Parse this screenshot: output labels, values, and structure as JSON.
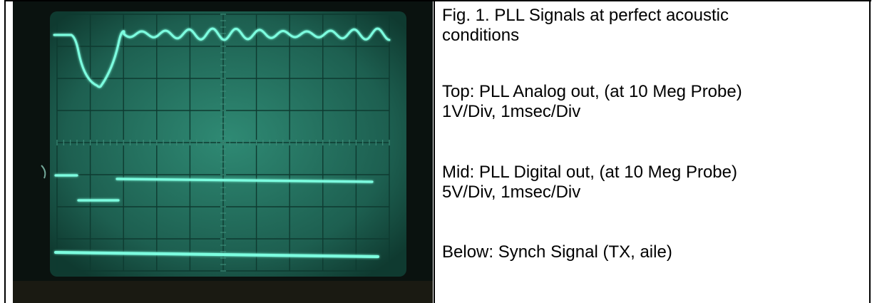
{
  "figure": {
    "caption_line1": "Fig. 1. PLL Signals at perfect acoustic",
    "caption_line2": "conditions"
  },
  "top_trace": {
    "line1": "Top: PLL Analog out, (at 10 Meg Probe)",
    "line2": "1V/Div, 1msec/Div"
  },
  "mid_trace": {
    "line1": "Mid: PLL Digital out, (at 10 Meg Probe)",
    "line2": "5V/Div, 1msec/Div"
  },
  "bottom_trace": {
    "line1": "Below: Synch Signal (TX, aile)"
  },
  "colors": {
    "trace": "#7dffe0",
    "screen": "#1f6a5a",
    "bezel": "#0a120f"
  }
}
